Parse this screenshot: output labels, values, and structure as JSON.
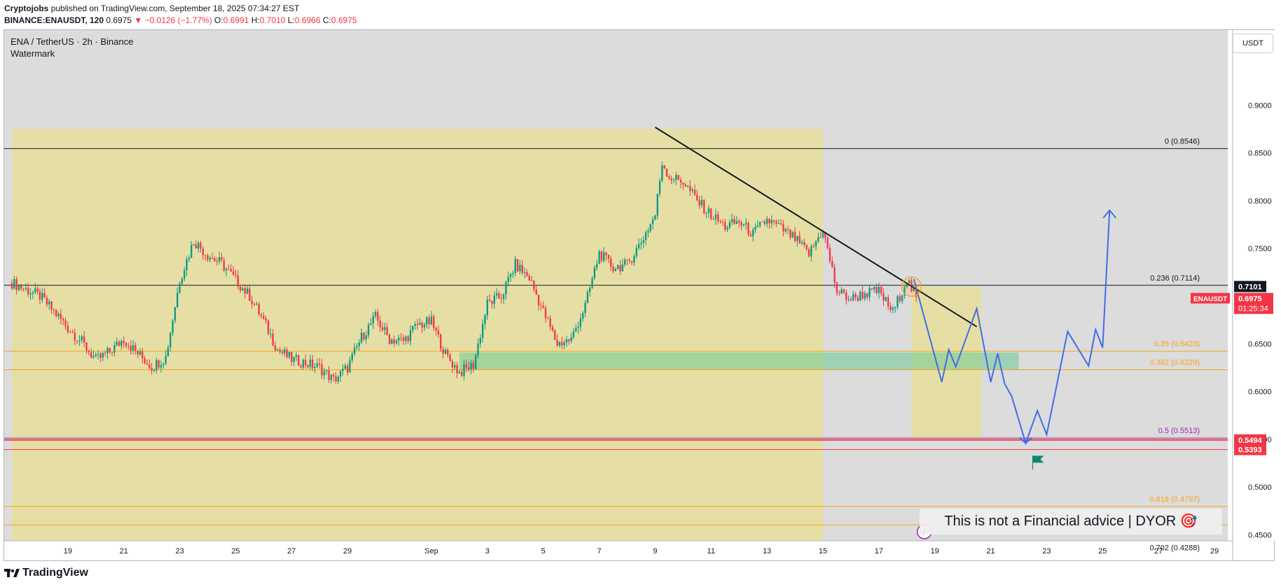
{
  "header": {
    "author": "Cryptojobs",
    "published": "published on TradingView.com, September 18, 2025 07:34:27 EST",
    "symbol_line": "BINANCE:ENAUSDT, 120",
    "last": "0.6975",
    "change": "▼ −0.0126 (−1.77%)",
    "o_label": "O:",
    "o_value": "0.6991",
    "h_label": "H:",
    "h_value": "0.7010",
    "l_label": "L:",
    "l_value": "0.6966",
    "c_label": "C:",
    "c_value": "0.6975"
  },
  "legend": {
    "symbol": "ENA / TetherUS · 2h · Binance",
    "watermark": "Watermark"
  },
  "currency_button": "USDT",
  "disclaimer": "This is not a Financial advice | DYOR 🎯",
  "brand": "TradingView",
  "colors": {
    "up": "#089981",
    "down": "#f23645",
    "zone": "#f0e2a0",
    "projection": "#3f6ee8",
    "fib": "#f7a21b",
    "support": "#f23645"
  },
  "chart_data": {
    "type": "candlestick",
    "price_range": [
      0.44,
      0.915
    ],
    "y_ticks": [
      "0.9000",
      "0.8500",
      "0.8000",
      "0.7500",
      "0.6500",
      "0.6000",
      "0.5500",
      "0.5000",
      "0.4500"
    ],
    "y_tick_values": [
      0.9,
      0.85,
      0.8,
      0.75,
      0.65,
      0.6,
      0.55,
      0.5,
      0.45
    ],
    "x_ticks": [
      "19",
      "21",
      "23",
      "25",
      "27",
      "29",
      "Sep",
      "3",
      "5",
      "7",
      "9",
      "11",
      "13",
      "15",
      "17",
      "19",
      "21",
      "23",
      "25",
      "27",
      "29"
    ],
    "date_range": [
      "2025-08-17",
      "2025-09-29"
    ],
    "x_tick_dates": [
      "2025-08-19",
      "2025-08-21",
      "2025-08-23",
      "2025-08-25",
      "2025-08-27",
      "2025-08-29",
      "2025-09-01",
      "2025-09-03",
      "2025-09-05",
      "2025-09-07",
      "2025-09-09",
      "2025-09-11",
      "2025-09-13",
      "2025-09-15",
      "2025-09-17",
      "2025-09-19",
      "2025-09-21",
      "2025-09-23",
      "2025-09-25",
      "2025-09-27",
      "2025-09-29"
    ],
    "close_path": [
      [
        "2025-08-17",
        0.714
      ],
      [
        "2025-08-18",
        0.7
      ],
      [
        "2025-08-18T12:00",
        0.684
      ],
      [
        "2025-08-19",
        0.667
      ],
      [
        "2025-08-19T12:00",
        0.652
      ],
      [
        "2025-08-20",
        0.633
      ],
      [
        "2025-08-20T12:00",
        0.642
      ],
      [
        "2025-08-21",
        0.655
      ],
      [
        "2025-08-21T12:00",
        0.64
      ],
      [
        "2025-08-22",
        0.626
      ],
      [
        "2025-08-22T12:00",
        0.636
      ],
      [
        "2025-08-23",
        0.717
      ],
      [
        "2025-08-23T12:00",
        0.758
      ],
      [
        "2025-08-24",
        0.743
      ],
      [
        "2025-08-24T12:00",
        0.734
      ],
      [
        "2025-08-25",
        0.717
      ],
      [
        "2025-08-25T12:00",
        0.7
      ],
      [
        "2025-08-26",
        0.674
      ],
      [
        "2025-08-26T12:00",
        0.644
      ],
      [
        "2025-08-27",
        0.634
      ],
      [
        "2025-08-27T12:00",
        0.63
      ],
      [
        "2025-08-28",
        0.625
      ],
      [
        "2025-08-28T12:00",
        0.612
      ],
      [
        "2025-08-29",
        0.625
      ],
      [
        "2025-08-29T12:00",
        0.657
      ],
      [
        "2025-08-30",
        0.678
      ],
      [
        "2025-08-30T12:00",
        0.655
      ],
      [
        "2025-08-31",
        0.653
      ],
      [
        "2025-08-31T12:00",
        0.67
      ],
      [
        "2025-09-01",
        0.673
      ],
      [
        "2025-09-01T12:00",
        0.639
      ],
      [
        "2025-09-02",
        0.62
      ],
      [
        "2025-09-02T12:00",
        0.628
      ],
      [
        "2025-09-03",
        0.692
      ],
      [
        "2025-09-03T12:00",
        0.7
      ],
      [
        "2025-09-04",
        0.733
      ],
      [
        "2025-09-04T12:00",
        0.719
      ],
      [
        "2025-09-05",
        0.684
      ],
      [
        "2025-09-05T12:00",
        0.65
      ],
      [
        "2025-09-06",
        0.655
      ],
      [
        "2025-09-06T12:00",
        0.69
      ],
      [
        "2025-09-07",
        0.745
      ],
      [
        "2025-09-07T12:00",
        0.73
      ],
      [
        "2025-09-08",
        0.733
      ],
      [
        "2025-09-08T12:00",
        0.757
      ],
      [
        "2025-09-09",
        0.785
      ],
      [
        "2025-09-09T06:00",
        0.84
      ],
      [
        "2025-09-09T12:00",
        0.825
      ],
      [
        "2025-09-10",
        0.82
      ],
      [
        "2025-09-10T12:00",
        0.8
      ],
      [
        "2025-09-11",
        0.785
      ],
      [
        "2025-09-11T12:00",
        0.773
      ],
      [
        "2025-09-12",
        0.778
      ],
      [
        "2025-09-12T12:00",
        0.765
      ],
      [
        "2025-09-13",
        0.78
      ],
      [
        "2025-09-13T12:00",
        0.771
      ],
      [
        "2025-09-14",
        0.76
      ],
      [
        "2025-09-14T12:00",
        0.744
      ],
      [
        "2025-09-15",
        0.77
      ],
      [
        "2025-09-15T12:00",
        0.705
      ],
      [
        "2025-09-16",
        0.697
      ],
      [
        "2025-09-16T12:00",
        0.703
      ],
      [
        "2025-09-17",
        0.705
      ],
      [
        "2025-09-17T12:00",
        0.683
      ],
      [
        "2025-09-18",
        0.718
      ],
      [
        "2025-09-18T08:00",
        0.6975
      ]
    ],
    "horizontal_lines": [
      {
        "label": "0 (0.8546)",
        "price": 0.8546,
        "color": "#131722"
      },
      {
        "label": "0.236 (0.7114)",
        "price": 0.7114,
        "color": "#131722"
      },
      {
        "label": "0.35 (0.6423)",
        "price": 0.6423,
        "color": "#f7a21b"
      },
      {
        "label": "0.382 (0.6229)",
        "price": 0.6229,
        "color": "#f7a21b"
      },
      {
        "label": "0.5 (0.5513)",
        "price": 0.5513,
        "color": "#9c27b0"
      },
      {
        "label": "0.618 (0.4797)",
        "price": 0.4797,
        "color": "#f7a21b"
      },
      {
        "label": "0.65 (0.4603)",
        "price": 0.4603,
        "color": "#f7a21b"
      },
      {
        "label": "0.702 (0.4288)",
        "price": 0.4288,
        "color": "#131722"
      }
    ],
    "support_lines": [
      {
        "price": 0.5494
      },
      {
        "price": 0.5393
      }
    ],
    "price_tags": [
      {
        "text": "0.7101",
        "price": 0.7101,
        "bg": "#131722"
      },
      {
        "text": "0.5494",
        "price": 0.5494,
        "bg": "#f23645"
      },
      {
        "text": "0.5393",
        "price": 0.5393,
        "bg": "#f23645"
      }
    ],
    "current_tag": {
      "symbol": "ENAUSDT",
      "price_text": "0.6975",
      "countdown": "01:25:34",
      "price": 0.6975
    },
    "trendline": [
      [
        "2025-09-09",
        0.877
      ],
      [
        "2025-09-20T12:00",
        0.668
      ]
    ],
    "zones": [
      {
        "from": "2025-08-17",
        "to": "2025-09-15",
        "top": 0.875,
        "bottom": 0.4333,
        "color": "yellow"
      },
      {
        "from": "2025-09-18T04:00",
        "to": "2025-09-20T16:00",
        "top": 0.71,
        "bottom": 0.551,
        "color": "yellow"
      },
      {
        "from": "2025-09-02",
        "to": "2025-09-22",
        "top": 0.641,
        "bottom": 0.623,
        "color": "green"
      }
    ],
    "projection": [
      [
        "2025-09-18T06:00",
        0.718
      ],
      [
        "2025-09-18T18:00",
        0.664
      ],
      [
        "2025-09-19T06:00",
        0.61
      ],
      [
        "2025-09-19T12:00",
        0.644
      ],
      [
        "2025-09-19T18:00",
        0.626
      ],
      [
        "2025-09-20T12:00",
        0.687
      ],
      [
        "2025-09-21",
        0.61
      ],
      [
        "2025-09-21T06:00",
        0.64
      ],
      [
        "2025-09-21T12:00",
        0.608
      ],
      [
        "2025-09-21T18:00",
        0.595
      ],
      [
        "2025-09-22T06:00",
        0.546
      ],
      [
        "2025-09-22T16:00",
        0.58
      ],
      [
        "2025-09-23",
        0.555
      ],
      [
        "2025-09-23T18:00",
        0.663
      ],
      [
        "2025-09-24T12:00",
        0.627
      ],
      [
        "2025-09-24T18:00",
        0.665
      ],
      [
        "2025-09-25",
        0.646
      ],
      [
        "2025-09-25T06:00",
        0.79
      ]
    ]
  }
}
